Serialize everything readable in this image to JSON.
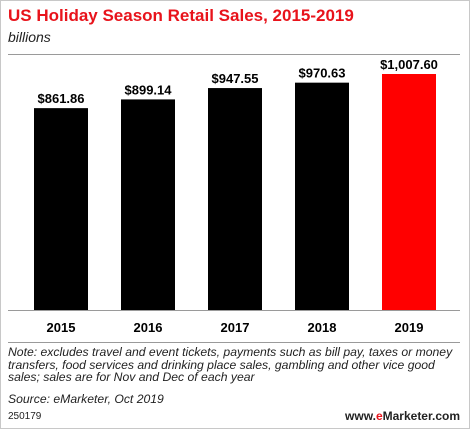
{
  "header": {
    "title": "US Holiday Season Retail Sales, 2015-2019",
    "subtitle": "billions"
  },
  "chart_data": {
    "type": "bar",
    "title": "US Holiday Season Retail Sales, 2015-2019",
    "subtitle": "billions",
    "xlabel": "",
    "ylabel": "",
    "categories": [
      "2015",
      "2016",
      "2017",
      "2018",
      "2019"
    ],
    "values": [
      861.86,
      899.14,
      947.55,
      970.63,
      1007.6
    ],
    "value_labels": [
      "$861.86",
      "$899.14",
      "$947.55",
      "$970.63",
      "$1,007.60"
    ],
    "ylim": [
      0,
      1007.6
    ],
    "grid": false,
    "colors": [
      "#000000",
      "#000000",
      "#000000",
      "#000000",
      "#ff0000"
    ]
  },
  "footer": {
    "note": "Note: excludes travel and event tickets, payments such as bill pay, taxes or money transfers, food services and drinking place sales, gambling and other vice good sales; sales are for Nov and Dec of each year",
    "source": "Source: eMarketer, Oct 2019",
    "code": "250179",
    "brand_prefix": "www.",
    "brand_e": "e",
    "brand_rest": "Marketer.com"
  },
  "colors": {
    "title": "#e8131b",
    "highlight_bar": "#ff0000",
    "bar": "#000000"
  }
}
